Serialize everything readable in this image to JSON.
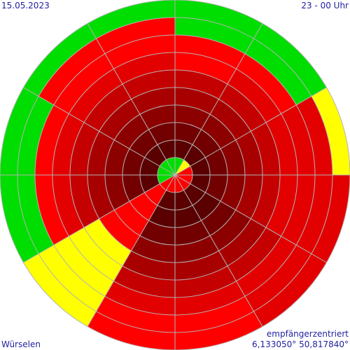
{
  "header": {
    "date": "15.05.2023",
    "time": "23 - 00 Uhr"
  },
  "footer": {
    "location": "Würselen",
    "mode": "empfängerzentriert",
    "coords": "6,133050° 50,817840°"
  },
  "colors": {
    "1": "#00dd00",
    "2": "#ffff00",
    "3": "#ff0000",
    "4": "#e20000",
    "5": "#c40000",
    "6": "#a80000",
    "7": "#8c0000",
    "8": "#720000",
    "9": "#5a0000",
    "grid": "#b4b4b4",
    "text": "#1f1fa0"
  },
  "chart_data": {
    "type": "polar-heatmap",
    "sectors": 12,
    "rings": 10,
    "sector_start_bearing_deg": 0,
    "sector_direction": "clockwise",
    "ring_order": "inner-to-outer",
    "cells": [
      [
        1,
        9,
        8,
        7,
        6,
        5,
        3,
        3,
        1,
        1
      ],
      [
        2,
        9,
        8,
        7,
        6,
        5,
        4,
        3,
        1,
        1
      ],
      [
        3,
        9,
        8,
        7,
        6,
        5,
        4,
        4,
        4,
        2
      ],
      [
        3,
        9,
        8,
        7,
        6,
        5,
        4,
        4,
        4,
        4
      ],
      [
        3,
        9,
        9,
        8,
        7,
        6,
        5,
        4,
        4,
        4
      ],
      [
        3,
        9,
        9,
        8,
        7,
        6,
        5,
        4,
        3,
        3
      ],
      [
        3,
        9,
        9,
        8,
        7,
        6,
        5,
        4,
        3,
        3
      ],
      [
        3,
        3,
        3,
        3,
        3,
        2,
        2,
        2,
        2,
        2
      ],
      [
        1,
        9,
        8,
        7,
        6,
        5,
        4,
        3,
        1,
        1
      ],
      [
        1,
        9,
        8,
        7,
        6,
        5,
        4,
        3,
        1,
        1
      ],
      [
        1,
        9,
        8,
        7,
        6,
        5,
        4,
        3,
        3,
        1
      ],
      [
        1,
        9,
        8,
        7,
        6,
        5,
        4,
        3,
        3,
        1
      ]
    ]
  }
}
